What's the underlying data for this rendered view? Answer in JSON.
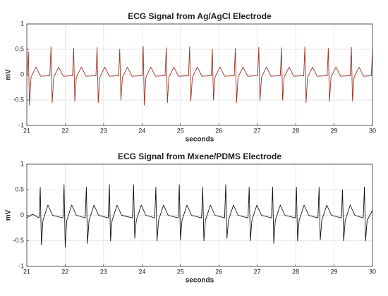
{
  "chart_data": [
    {
      "type": "line",
      "title": "ECG Signal from Ag/AgCl Electrode",
      "xlabel": "seconds",
      "ylabel": "mV",
      "xlim": [
        21,
        30
      ],
      "ylim": [
        -1,
        1
      ],
      "xticks": [
        21,
        22,
        23,
        24,
        25,
        26,
        27,
        28,
        29,
        30
      ],
      "yticks": [
        -1,
        -0.5,
        0,
        0.5,
        1
      ],
      "grid": true,
      "series": [
        {
          "color": "#9a3322",
          "x": [
            21,
            21.01,
            21.04,
            21.07,
            21.11,
            21.24,
            21.36,
            21.6,
            21.63,
            21.66,
            21.7,
            21.83,
            21.95,
            22.19,
            22.22,
            22.25,
            22.29,
            22.42,
            22.54,
            22.8,
            22.83,
            22.86,
            22.9,
            23.03,
            23.15,
            23.39,
            23.42,
            23.45,
            23.49,
            23.62,
            23.74,
            24,
            24.03,
            24.06,
            24.1,
            24.23,
            24.35,
            24.6,
            24.63,
            24.66,
            24.7,
            24.83,
            24.95,
            25.21,
            25.24,
            25.27,
            25.31,
            25.44,
            25.56,
            25.8,
            25.83,
            25.86,
            25.9,
            26.03,
            26.15,
            26.4,
            26.43,
            26.46,
            26.5,
            26.63,
            26.75,
            27.01,
            27.04,
            27.07,
            27.11,
            27.24,
            27.36,
            27.6,
            27.63,
            27.66,
            27.7,
            27.83,
            27.95,
            28.21,
            28.24,
            28.27,
            28.31,
            28.44,
            28.56,
            28.82,
            28.85,
            28.88,
            28.92,
            29.05,
            29.17,
            29.42,
            29.45,
            29.48,
            29.52,
            29.65,
            29.77,
            29.97,
            30
          ],
          "values": [
            0,
            -0.02,
            0.45,
            -0.6,
            -0.05,
            0.15,
            -0.03,
            -0.02,
            0.55,
            -0.55,
            -0.05,
            0.15,
            -0.03,
            -0.02,
            0.52,
            -0.52,
            -0.05,
            0.15,
            -0.03,
            -0.02,
            0.54,
            -0.55,
            -0.05,
            0.15,
            -0.03,
            -0.02,
            0.5,
            -0.5,
            -0.05,
            0.15,
            -0.03,
            -0.02,
            0.56,
            -0.6,
            -0.05,
            0.15,
            -0.03,
            -0.02,
            0.53,
            -0.55,
            -0.05,
            0.15,
            -0.03,
            -0.02,
            0.55,
            -0.52,
            -0.05,
            0.15,
            -0.03,
            -0.02,
            0.5,
            -0.5,
            -0.05,
            0.15,
            -0.03,
            -0.02,
            0.52,
            -0.55,
            -0.05,
            0.15,
            -0.03,
            -0.02,
            0.54,
            -0.52,
            -0.05,
            0.15,
            -0.03,
            -0.02,
            0.53,
            -0.5,
            -0.05,
            0.15,
            -0.03,
            -0.02,
            0.55,
            -0.55,
            -0.05,
            0.15,
            -0.03,
            -0.02,
            0.52,
            -0.53,
            -0.05,
            0.15,
            -0.03,
            -0.02,
            0.54,
            -0.52,
            -0.05,
            0.15,
            -0.03,
            -0.02,
            0.5
          ]
        }
      ]
    },
    {
      "type": "line",
      "title": "ECG Signal from Mxene/PDMS Electrode",
      "xlabel": "seconds",
      "ylabel": "mV",
      "xlim": [
        21,
        30
      ],
      "ylim": [
        -1,
        1
      ],
      "xticks": [
        21,
        22,
        23,
        24,
        25,
        26,
        27,
        28,
        29,
        30
      ],
      "yticks": [
        -1,
        -0.5,
        0,
        0.5,
        1
      ],
      "grid": true,
      "series": [
        {
          "color": "#111111",
          "x": [
            21,
            21.15,
            21.32,
            21.35,
            21.38,
            21.42,
            21.55,
            21.67,
            21.94,
            21.97,
            22,
            22.04,
            22.17,
            22.29,
            22.52,
            22.55,
            22.58,
            22.62,
            22.75,
            22.87,
            23.12,
            23.15,
            23.18,
            23.22,
            23.35,
            23.47,
            23.75,
            23.78,
            23.81,
            23.85,
            23.98,
            24.1,
            24.33,
            24.36,
            24.39,
            24.43,
            24.56,
            24.68,
            24.94,
            24.97,
            25,
            25.04,
            25.17,
            25.29,
            25.55,
            25.58,
            25.61,
            25.65,
            25.78,
            25.9,
            26.15,
            26.18,
            26.21,
            26.25,
            26.38,
            26.5,
            26.76,
            26.79,
            26.82,
            26.86,
            26.99,
            27.11,
            27.37,
            27.4,
            27.43,
            27.47,
            27.6,
            27.72,
            27.99,
            28.02,
            28.05,
            28.09,
            28.22,
            28.34,
            28.58,
            28.61,
            28.64,
            28.68,
            28.81,
            28.93,
            29.19,
            29.22,
            29.25,
            29.29,
            29.42,
            29.54,
            29.76,
            29.79,
            29.82,
            29.86,
            30
          ],
          "values": [
            -0.05,
            0.02,
            -0.05,
            0.55,
            -0.58,
            -0.1,
            0.2,
            0,
            -0.05,
            0.6,
            -0.62,
            -0.1,
            0.2,
            0,
            -0.05,
            0.55,
            -0.55,
            -0.1,
            0.2,
            0,
            -0.05,
            0.6,
            -0.5,
            -0.1,
            0.2,
            0,
            -0.05,
            0.6,
            -0.45,
            -0.1,
            0.2,
            0,
            -0.05,
            0.55,
            -0.5,
            -0.1,
            0.2,
            0,
            -0.05,
            0.6,
            -0.48,
            -0.1,
            0.2,
            0,
            -0.05,
            0.55,
            -0.5,
            -0.1,
            0.2,
            0,
            -0.05,
            0.6,
            -0.45,
            -0.1,
            0.2,
            0,
            -0.05,
            0.55,
            -0.5,
            -0.1,
            0.2,
            0,
            -0.05,
            0.55,
            -0.55,
            -0.1,
            0.2,
            0,
            -0.05,
            0.55,
            -0.5,
            -0.1,
            0.2,
            0,
            -0.05,
            0.55,
            -0.48,
            -0.1,
            0.2,
            0,
            -0.05,
            0.5,
            -0.5,
            -0.1,
            0.2,
            0,
            -0.05,
            0.55,
            -0.5,
            -0.1,
            0.1
          ]
        }
      ]
    }
  ]
}
